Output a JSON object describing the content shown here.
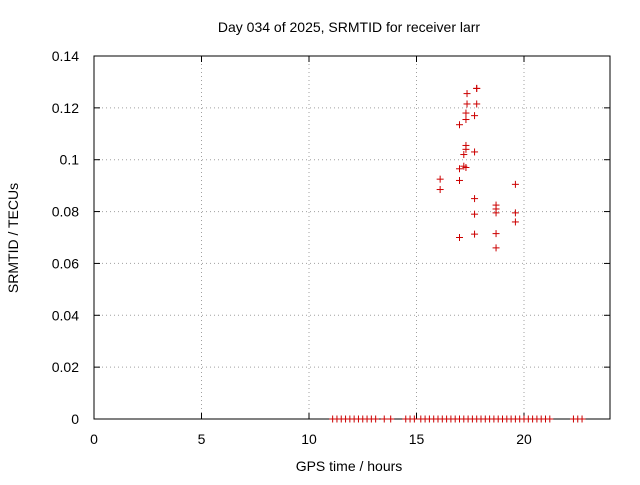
{
  "chart_data": {
    "type": "scatter",
    "title": "Day 034 of 2025, SRMTID for receiver larr",
    "xlabel": "GPS time / hours",
    "ylabel": "SRMTID / TECUs",
    "xlim": [
      0,
      24
    ],
    "ylim": [
      0,
      0.14
    ],
    "x_ticks": [
      0,
      5,
      10,
      15,
      20
    ],
    "x_tick_labels": [
      "0",
      "5",
      "10",
      "15",
      "20"
    ],
    "y_ticks": [
      0,
      0.02,
      0.04,
      0.06,
      0.08,
      0.1,
      0.12,
      0.14
    ],
    "y_tick_labels": [
      "0",
      "0.02",
      "0.04",
      "0.06",
      "0.08",
      "0.1",
      "0.12",
      "0.14"
    ],
    "grid": true,
    "marker": "+",
    "color": "#cc0000",
    "series": [
      {
        "name": "SRMTID",
        "x": [
          16.1,
          16.1,
          17.0,
          17.0,
          17.0,
          17.0,
          17.2,
          17.2,
          17.3,
          17.3,
          17.3,
          17.3,
          17.3,
          17.35,
          17.35,
          17.7,
          17.7,
          17.7,
          17.7,
          17.7,
          17.8,
          17.8,
          17.8,
          18.7,
          18.7,
          18.7,
          18.7,
          18.7,
          19.6,
          19.6,
          19.6,
          11.1,
          11.3,
          11.5,
          11.7,
          11.9,
          12.1,
          12.3,
          12.5,
          12.7,
          12.9,
          13.1,
          13.5,
          13.8,
          14.5,
          14.7,
          14.9,
          15.2,
          15.4,
          15.6,
          15.8,
          16.0,
          16.2,
          16.4,
          16.6,
          16.8,
          17.0,
          17.2,
          17.4,
          17.6,
          17.8,
          18.0,
          18.2,
          18.4,
          18.6,
          18.8,
          19.0,
          19.2,
          19.4,
          19.6,
          19.8,
          20.0,
          20.2,
          20.4,
          20.6,
          20.8,
          21.0,
          21.2,
          22.3,
          22.5,
          22.7
        ],
        "y": [
          0.0925,
          0.0885,
          0.07,
          0.092,
          0.0965,
          0.1135,
          0.102,
          0.0975,
          0.097,
          0.104,
          0.1055,
          0.1155,
          0.118,
          0.1215,
          0.1255,
          0.085,
          0.079,
          0.0713,
          0.103,
          0.117,
          0.1215,
          0.1275,
          0.1275,
          0.066,
          0.0715,
          0.0795,
          0.081,
          0.0825,
          0.076,
          0.0795,
          0.0905,
          0,
          0,
          0,
          0,
          0,
          0,
          0,
          0,
          0,
          0,
          0,
          0,
          0,
          0,
          0,
          0,
          0,
          0,
          0,
          0,
          0,
          0,
          0,
          0,
          0,
          0,
          0,
          0,
          0,
          0,
          0,
          0,
          0,
          0,
          0,
          0,
          0,
          0,
          0,
          0,
          0,
          0,
          0,
          0,
          0,
          0,
          0,
          0,
          0,
          0
        ]
      }
    ]
  }
}
